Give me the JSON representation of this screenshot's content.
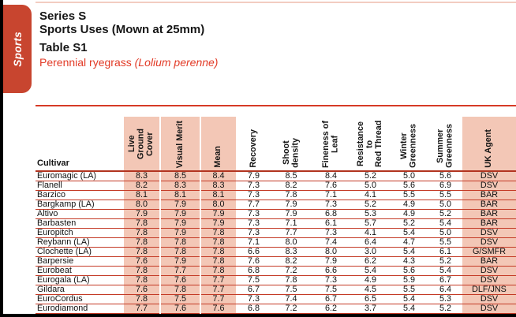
{
  "page": {
    "tab_label": "Sports",
    "title_line1": "Series S",
    "title_line2": "Sports Uses (Mown at 25mm)",
    "table_label": "Table S1",
    "species_prefix": "Perennial ryegrass ",
    "species_latin": "(Lolium perenne)"
  },
  "colors": {
    "brand_red": "#C8452F",
    "accent_red": "#E23B27",
    "line_red": "#C43A26",
    "highlight_pink": "#F3C7B6"
  },
  "table": {
    "cultivar_header": "Cultivar",
    "columns": [
      "Live Ground\nCover",
      "Visual Merit",
      "Mean",
      "Recovery",
      "Shoot\ndensity",
      "Fineness of\nLeaf",
      "Resistance to\nRed Thread",
      "Winter\nGreenness",
      "Summer\nGreenness",
      "UK Agent"
    ],
    "rows": [
      {
        "cultivar": "Euromagic (LA)",
        "values": [
          "8.3",
          "8.5",
          "8.4",
          "7.9",
          "8.5",
          "8.4",
          "5.2",
          "5.0",
          "5.6"
        ],
        "agent": "DSV"
      },
      {
        "cultivar": "Flanell",
        "values": [
          "8.2",
          "8.3",
          "8.3",
          "7.3",
          "8.2",
          "7.6",
          "5.0",
          "5.6",
          "6.9"
        ],
        "agent": "DSV"
      },
      {
        "cultivar": "Barzico",
        "values": [
          "8.1",
          "8.1",
          "8.1",
          "7.3",
          "7.8",
          "7.1",
          "4.1",
          "5.5",
          "5.5"
        ],
        "agent": "BAR"
      },
      {
        "cultivar": "Bargkamp (LA)",
        "values": [
          "8.0",
          "7.9",
          "8.0",
          "7.7",
          "7.9",
          "7.3",
          "5.2",
          "4.9",
          "5.0"
        ],
        "agent": "BAR"
      },
      {
        "cultivar": "Altivo",
        "values": [
          "7.9",
          "7.9",
          "7.9",
          "7.3",
          "7.9",
          "6.8",
          "5.3",
          "4.9",
          "5.2"
        ],
        "agent": "BAR"
      },
      {
        "cultivar": "Barbasten",
        "values": [
          "7.8",
          "7.9",
          "7.9",
          "7.3",
          "7.1",
          "6.1",
          "5.7",
          "5.2",
          "5.4"
        ],
        "agent": "BAR"
      },
      {
        "cultivar": "Europitch",
        "values": [
          "7.8",
          "7.9",
          "7.8",
          "7.3",
          "7.7",
          "7.3",
          "4.1",
          "5.4",
          "5.0"
        ],
        "agent": "DSV"
      },
      {
        "cultivar": "Reybann (LA)",
        "values": [
          "7.8",
          "7.8",
          "7.8",
          "7.1",
          "8.0",
          "7.4",
          "6.4",
          "4.7",
          "5.5"
        ],
        "agent": "DSV"
      },
      {
        "cultivar": "Clochette (LA)",
        "values": [
          "7.8",
          "7.8",
          "7.8",
          "6.6",
          "8.3",
          "8.0",
          "3.0",
          "5.4",
          "6.1"
        ],
        "agent": "G/SMFR"
      },
      {
        "cultivar": "Barpersie",
        "values": [
          "7.6",
          "7.9",
          "7.8",
          "7.6",
          "8.2",
          "7.9",
          "6.2",
          "4.3",
          "5.2"
        ],
        "agent": "BAR"
      },
      {
        "cultivar": "Eurobeat",
        "values": [
          "7.8",
          "7.7",
          "7.8",
          "6.8",
          "7.2",
          "6.6",
          "5.4",
          "5.6",
          "5.4"
        ],
        "agent": "DSV"
      },
      {
        "cultivar": "Eurogala (LA)",
        "values": [
          "7.8",
          "7.6",
          "7.7",
          "7.5",
          "7.8",
          "7.3",
          "4.9",
          "5.9",
          "6.7"
        ],
        "agent": "DSV"
      },
      {
        "cultivar": "Gildara",
        "values": [
          "7.6",
          "7.8",
          "7.7",
          "6.7",
          "7.5",
          "7.5",
          "4.5",
          "5.5",
          "6.4"
        ],
        "agent": "DLF/JNS"
      },
      {
        "cultivar": "EuroCordus",
        "values": [
          "7.8",
          "7.5",
          "7.7",
          "7.3",
          "7.4",
          "6.7",
          "6.5",
          "5.4",
          "5.3"
        ],
        "agent": "DSV"
      },
      {
        "cultivar": "Eurodiamond",
        "values": [
          "7.7",
          "7.6",
          "7.6",
          "6.8",
          "7.2",
          "6.2",
          "3.7",
          "5.4",
          "5.2"
        ],
        "agent": "DSV"
      }
    ]
  }
}
